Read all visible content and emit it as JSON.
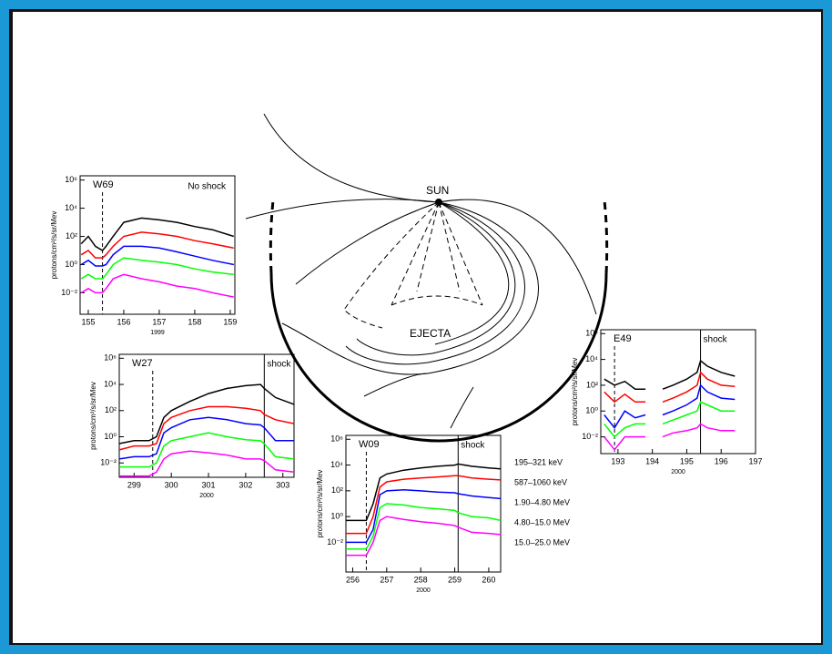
{
  "chart_data": [
    {
      "type": "line",
      "title": "W69",
      "annotation": "No shock",
      "xlabel": "1999",
      "ylabel": "protons/cm²/s/sr/Mev",
      "log_y": true,
      "x": [
        154.8,
        155.0,
        155.2,
        155.4,
        155.5,
        155.7,
        156.0,
        156.5,
        157,
        157.5,
        158,
        158.5,
        159.1
      ],
      "event_x": 155.4,
      "series": [
        {
          "color": "#000000",
          "values": [
            30,
            100,
            20,
            10,
            20,
            100,
            1000,
            2000,
            1500,
            1000,
            500,
            300,
            100
          ]
        },
        {
          "color": "#ff0000",
          "values": [
            5,
            10,
            3,
            3,
            5,
            20,
            100,
            200,
            150,
            100,
            50,
            30,
            15
          ]
        },
        {
          "color": "#0000ff",
          "values": [
            1,
            2,
            0.8,
            0.8,
            1,
            5,
            20,
            20,
            15,
            8,
            4,
            2,
            1
          ]
        },
        {
          "color": "#00ff00",
          "values": [
            0.1,
            0.2,
            0.1,
            0.1,
            0.2,
            1,
            3,
            2,
            1.5,
            1,
            0.5,
            0.3,
            0.2
          ]
        },
        {
          "color": "#ff00ff",
          "values": [
            0.01,
            0.02,
            0.01,
            0.01,
            0.02,
            0.1,
            0.2,
            0.1,
            0.06,
            0.03,
            0.02,
            0.01,
            0.005
          ]
        }
      ],
      "xlim": [
        154.77,
        159.13
      ],
      "xticks": [
        155,
        156,
        157,
        158,
        159
      ],
      "ylim": [
        0.0003,
        2000000
      ],
      "yticks": [
        {
          "value": 0.01,
          "label": "10⁻²"
        },
        {
          "value": 1,
          "label": "10⁰"
        },
        {
          "value": 100,
          "label": "10²"
        },
        {
          "value": 10000,
          "label": "10⁴"
        },
        {
          "value": 1000000,
          "label": "10⁶"
        }
      ]
    },
    {
      "type": "line",
      "title": "W27",
      "shock_label": "shock",
      "xlabel": "2000",
      "ylabel": "protons/cm²/s/sr/Mev",
      "log_y": true,
      "x": [
        298.6,
        299.0,
        299.4,
        299.6,
        299.8,
        300.0,
        300.5,
        301,
        301.5,
        302,
        302.4,
        302.5,
        302.8,
        303.3
      ],
      "event_x": 299.5,
      "shock_x": 302.5,
      "series": [
        {
          "color": "#000000",
          "values": [
            0.3,
            0.5,
            0.5,
            1,
            30,
            100,
            500,
            2000,
            5000,
            8000,
            10000,
            5000,
            1000,
            300
          ]
        },
        {
          "color": "#ff0000",
          "values": [
            0.1,
            0.2,
            0.2,
            0.3,
            10,
            30,
            100,
            200,
            200,
            150,
            100,
            50,
            20,
            10
          ]
        },
        {
          "color": "#0000ff",
          "values": [
            0.02,
            0.03,
            0.03,
            0.05,
            2,
            5,
            20,
            30,
            20,
            10,
            8,
            5,
            0.5,
            0.5
          ]
        },
        {
          "color": "#00ff00",
          "values": [
            0.005,
            0.005,
            0.005,
            0.01,
            0.2,
            0.5,
            1,
            2,
            1,
            0.6,
            0.5,
            0.3,
            0.03,
            0.02
          ]
        },
        {
          "color": "#ff00ff",
          "values": [
            0.001,
            0.001,
            0.001,
            0.002,
            0.02,
            0.05,
            0.08,
            0.06,
            0.04,
            0.02,
            0.02,
            0.015,
            0.003,
            0.002
          ]
        }
      ],
      "xlim": [
        298.6,
        303.3
      ],
      "xticks": [
        299,
        300,
        301,
        302,
        303
      ],
      "ylim": [
        0.0008,
        2000000
      ],
      "yticks": [
        {
          "value": 0.01,
          "label": "10⁻²"
        },
        {
          "value": 1,
          "label": "10⁰"
        },
        {
          "value": 100,
          "label": "10²"
        },
        {
          "value": 10000,
          "label": "10⁴"
        },
        {
          "value": 1000000,
          "label": "10⁶"
        }
      ]
    },
    {
      "type": "line",
      "title": "W09",
      "shock_label": "shock",
      "xlabel": "2000",
      "ylabel": "protons/cm²/s/sr/Mev",
      "log_y": true,
      "x": [
        255.8,
        256.2,
        256.4,
        256.6,
        256.8,
        257,
        257.5,
        258,
        258.5,
        259,
        259.1,
        259.5,
        260,
        260.35
      ],
      "event_x": 256.4,
      "shock_x": 259.1,
      "series": [
        {
          "name": "195–321  keV",
          "color": "#000000",
          "values": [
            0.5,
            0.5,
            0.5,
            10,
            1000,
            2000,
            4000,
            6000,
            8000,
            10000,
            12000,
            8000,
            6000,
            5000
          ]
        },
        {
          "name": "587–1060 keV",
          "color": "#ff0000",
          "values": [
            0.05,
            0.05,
            0.05,
            1,
            200,
            500,
            800,
            1000,
            1200,
            1500,
            1500,
            1000,
            800,
            700
          ]
        },
        {
          "name": "1.90–4.80 MeV",
          "color": "#0000ff",
          "values": [
            0.01,
            0.01,
            0.01,
            0.1,
            50,
            100,
            120,
            100,
            80,
            70,
            60,
            40,
            30,
            25
          ]
        },
        {
          "name": "4.80–15.0 MeV",
          "color": "#00ff00",
          "values": [
            0.003,
            0.003,
            0.003,
            0.03,
            5,
            10,
            8,
            5,
            4,
            3,
            2,
            1,
            0.8,
            0.5
          ]
        },
        {
          "name": "15.0–25.0 MeV",
          "color": "#ff00ff",
          "values": [
            0.001,
            0.001,
            0.001,
            0.01,
            0.5,
            1,
            0.6,
            0.4,
            0.3,
            0.2,
            0.15,
            0.06,
            0.05,
            0.04
          ]
        }
      ],
      "xlim": [
        255.8,
        260.35
      ],
      "xticks": [
        256,
        257,
        258,
        259,
        260
      ],
      "ylim": [
        5e-05,
        2000000
      ],
      "yticks": [
        {
          "value": 0.01,
          "label": "10⁻²"
        },
        {
          "value": 1,
          "label": "10⁰"
        },
        {
          "value": 100,
          "label": "10²"
        },
        {
          "value": 10000,
          "label": "10⁴"
        },
        {
          "value": 1000000,
          "label": "10⁶"
        }
      ]
    },
    {
      "type": "line",
      "title": "E49",
      "shock_label": "shock",
      "xlabel": "2000",
      "ylabel": "protons/cm²/s/sr/Mev",
      "log_y": true,
      "x": [
        192.6,
        192.9,
        193.2,
        193.5,
        193.8,
        194.0,
        194.3,
        194.6,
        195.0,
        195.3,
        195.4,
        195.6,
        196.0,
        196.4
      ],
      "event_x": 192.9,
      "shock_x": 195.4,
      "series": [
        {
          "color": "#000000",
          "values": [
            300,
            100,
            200,
            50,
            50,
            null,
            50,
            100,
            300,
            1000,
            8000,
            3000,
            1000,
            500
          ]
        },
        {
          "color": "#ff0000",
          "values": [
            30,
            5,
            20,
            5,
            5,
            null,
            5,
            10,
            30,
            100,
            1000,
            300,
            100,
            80
          ]
        },
        {
          "color": "#0000ff",
          "values": [
            0.5,
            0.05,
            1,
            0.3,
            0.5,
            null,
            0.5,
            1,
            3,
            10,
            100,
            30,
            10,
            8
          ]
        },
        {
          "color": "#00ff00",
          "values": [
            0.1,
            0.01,
            0.05,
            0.1,
            0.1,
            null,
            0.1,
            0.2,
            0.5,
            1,
            5,
            3,
            1,
            1
          ]
        },
        {
          "color": "#ff00ff",
          "values": [
            0.01,
            0.001,
            0.01,
            0.01,
            0.01,
            null,
            0.01,
            0.02,
            0.03,
            0.05,
            0.1,
            0.05,
            0.03,
            0.03
          ]
        }
      ],
      "xlim": [
        192.5,
        197.0
      ],
      "xticks": [
        193,
        194,
        195,
        196,
        197
      ],
      "ylim": [
        0.0005,
        2000000
      ],
      "yticks": [
        {
          "value": 0.01,
          "label": "10⁻²"
        },
        {
          "value": 1,
          "label": "10⁰"
        },
        {
          "value": 100,
          "label": "10²"
        },
        {
          "value": 10000,
          "label": "10⁴"
        },
        {
          "value": 1000000,
          "label": "10⁶"
        }
      ]
    }
  ],
  "diagram": {
    "sun": "SUN",
    "ejecta": "EJECTA"
  }
}
